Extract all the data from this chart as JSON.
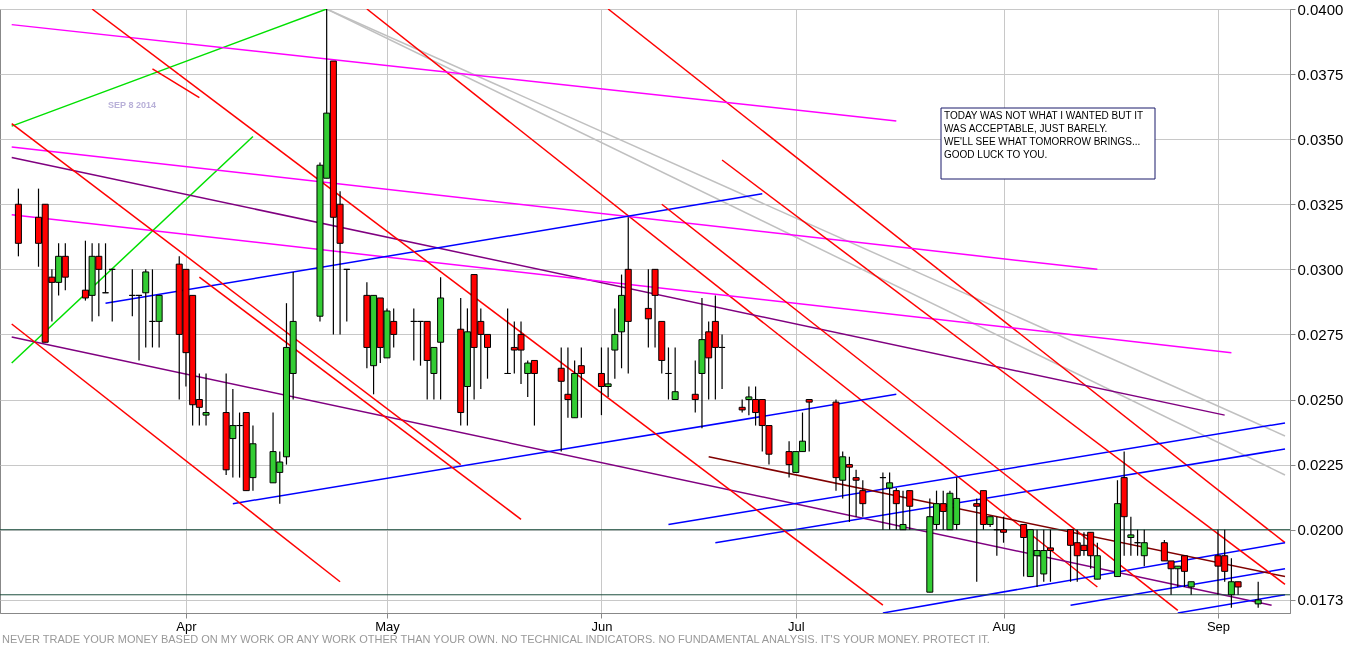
{
  "chart_data": {
    "type": "candlestick",
    "x": [
      "2014-03-07",
      "2014-03-10",
      "2014-03-11",
      "2014-03-12",
      "2014-03-13",
      "2014-03-14",
      "2014-03-17",
      "2014-03-18",
      "2014-03-19",
      "2014-03-20",
      "2014-03-21",
      "2014-03-24",
      "2014-03-25",
      "2014-03-26",
      "2014-03-27",
      "2014-03-28",
      "2014-03-31",
      "2014-04-01",
      "2014-04-02",
      "2014-04-03",
      "2014-04-04",
      "2014-04-07",
      "2014-04-08",
      "2014-04-09",
      "2014-04-10",
      "2014-04-11",
      "2014-04-14",
      "2014-04-15",
      "2014-04-16",
      "2014-04-17",
      "2014-04-21",
      "2014-04-22",
      "2014-04-23",
      "2014-04-24",
      "2014-04-25",
      "2014-04-28",
      "2014-04-29",
      "2014-04-30",
      "2014-05-01",
      "2014-05-02",
      "2014-05-05",
      "2014-05-06",
      "2014-05-07",
      "2014-05-08",
      "2014-05-09",
      "2014-05-12",
      "2014-05-13",
      "2014-05-14",
      "2014-05-15",
      "2014-05-16",
      "2014-05-19",
      "2014-05-20",
      "2014-05-21",
      "2014-05-22",
      "2014-05-23",
      "2014-05-27",
      "2014-05-28",
      "2014-05-29",
      "2014-05-30",
      "2014-06-02",
      "2014-06-03",
      "2014-06-04",
      "2014-06-05",
      "2014-06-06",
      "2014-06-09",
      "2014-06-10",
      "2014-06-11",
      "2014-06-12",
      "2014-06-13",
      "2014-06-16",
      "2014-06-17",
      "2014-06-18",
      "2014-06-19",
      "2014-06-20",
      "2014-06-23",
      "2014-06-24",
      "2014-06-25",
      "2014-06-26",
      "2014-06-27",
      "2014-06-30",
      "2014-07-01",
      "2014-07-02",
      "2014-07-03",
      "2014-07-07",
      "2014-07-08",
      "2014-07-09",
      "2014-07-10",
      "2014-07-11",
      "2014-07-14",
      "2014-07-15",
      "2014-07-16",
      "2014-07-17",
      "2014-07-18",
      "2014-07-21",
      "2014-07-22",
      "2014-07-23",
      "2014-07-24",
      "2014-07-25",
      "2014-07-28",
      "2014-07-29",
      "2014-07-30",
      "2014-07-31",
      "2014-08-01",
      "2014-08-04",
      "2014-08-05",
      "2014-08-06",
      "2014-08-07",
      "2014-08-08",
      "2014-08-11",
      "2014-08-12",
      "2014-08-13",
      "2014-08-14",
      "2014-08-15",
      "2014-08-18",
      "2014-08-19",
      "2014-08-20",
      "2014-08-21",
      "2014-08-22",
      "2014-08-25",
      "2014-08-26",
      "2014-08-27",
      "2014-08-28",
      "2014-08-29",
      "2014-09-02",
      "2014-09-03",
      "2014-09-04",
      "2014-09-05",
      "2014-09-08"
    ],
    "ohlc": [
      [
        0.0325,
        0.0331,
        0.0305,
        0.031
      ],
      [
        0.032,
        0.0331,
        0.0301,
        0.031
      ],
      [
        0.0325,
        0.0325,
        0.0272,
        0.0272
      ],
      [
        0.0297,
        0.03,
        0.028,
        0.0295
      ],
      [
        0.0295,
        0.031,
        0.029,
        0.0305
      ],
      [
        0.0305,
        0.031,
        0.0292,
        0.0297
      ],
      [
        0.0292,
        0.0311,
        0.0288,
        0.0289
      ],
      [
        0.029,
        0.031,
        0.028,
        0.0305
      ],
      [
        0.0305,
        0.031,
        0.0282,
        0.03
      ],
      [
        0.0291,
        0.031,
        0.0291,
        0.0291
      ],
      [
        0.03,
        0.03,
        0.028,
        0.03
      ],
      [
        0.029,
        0.03,
        0.0282,
        0.029
      ],
      [
        0.029,
        0.029,
        0.0265,
        0.029
      ],
      [
        0.0291,
        0.03,
        0.027,
        0.0299
      ],
      [
        0.028,
        0.03,
        0.027,
        0.028
      ],
      [
        0.028,
        0.029,
        0.027,
        0.029
      ],
      [
        0.0302,
        0.0305,
        0.025,
        0.0275
      ],
      [
        0.03,
        0.03,
        0.0255,
        0.0268
      ],
      [
        0.029,
        0.029,
        0.024,
        0.0248
      ],
      [
        0.025,
        0.026,
        0.024,
        0.0247
      ],
      [
        0.0244,
        0.026,
        0.024,
        0.0245
      ],
      [
        0.0245,
        0.026,
        0.0221,
        0.0223
      ],
      [
        0.0235,
        0.0254,
        0.022,
        0.024
      ],
      [
        0.024,
        0.0245,
        0.022,
        0.024
      ],
      [
        0.0245,
        0.0245,
        0.0215,
        0.0215
      ],
      [
        0.022,
        0.024,
        0.0215,
        0.0233
      ],
      [
        0.0218,
        0.0245,
        0.0218,
        0.023
      ],
      [
        0.0222,
        0.023,
        0.021,
        0.0226
      ],
      [
        0.0228,
        0.0287,
        0.0225,
        0.027
      ],
      [
        0.026,
        0.0299,
        0.025,
        0.028
      ],
      [
        0.0282,
        0.0341,
        0.028,
        0.034
      ],
      [
        0.0335,
        0.04,
        0.0335,
        0.036
      ],
      [
        0.038,
        0.038,
        0.0275,
        0.032
      ],
      [
        0.0325,
        0.033,
        0.0275,
        0.031
      ],
      [
        0.03,
        0.03,
        0.028,
        0.03
      ],
      [
        0.029,
        0.0295,
        0.0262,
        0.027
      ],
      [
        0.0263,
        0.029,
        0.0252,
        0.029
      ],
      [
        0.0289,
        0.0289,
        0.0264,
        0.027
      ],
      [
        0.0266,
        0.0285,
        0.0266,
        0.0284
      ],
      [
        0.028,
        0.0285,
        0.027,
        0.0275
      ],
      [
        0.028,
        0.0285,
        0.0265,
        0.028
      ],
      [
        0.028,
        0.028,
        0.0263,
        0.028
      ],
      [
        0.028,
        0.028,
        0.025,
        0.0265
      ],
      [
        0.026,
        0.027,
        0.025,
        0.027
      ],
      [
        0.0272,
        0.0297,
        0.025,
        0.0289
      ],
      [
        0.0277,
        0.0289,
        0.024,
        0.0245
      ],
      [
        0.0255,
        0.0285,
        0.024,
        0.0276
      ],
      [
        0.0298,
        0.0298,
        0.025,
        0.027
      ],
      [
        0.028,
        0.0285,
        0.0254,
        0.0275
      ],
      [
        0.0275,
        0.0275,
        0.0258,
        0.027
      ],
      [
        0.026,
        0.0285,
        0.026,
        0.026
      ],
      [
        0.027,
        0.028,
        0.026,
        0.0269
      ],
      [
        0.0275,
        0.028,
        0.0256,
        0.0269
      ],
      [
        0.026,
        0.0265,
        0.0251,
        0.0264
      ],
      [
        0.0265,
        0.0265,
        0.024,
        0.026
      ],
      [
        0.0262,
        0.027,
        0.023,
        0.0257
      ],
      [
        0.0252,
        0.027,
        0.0243,
        0.025
      ],
      [
        0.0243,
        0.0265,
        0.0243,
        0.026
      ],
      [
        0.0263,
        0.027,
        0.0243,
        0.026
      ],
      [
        0.026,
        0.027,
        0.0244,
        0.0255
      ],
      [
        0.0255,
        0.027,
        0.0251,
        0.0256
      ],
      [
        0.0269,
        0.0285,
        0.0258,
        0.0275
      ],
      [
        0.0276,
        0.0298,
        0.0262,
        0.029
      ],
      [
        0.03,
        0.032,
        0.026,
        0.028
      ],
      [
        0.0285,
        0.03,
        0.027,
        0.0281
      ],
      [
        0.03,
        0.03,
        0.027,
        0.029
      ],
      [
        0.028,
        0.028,
        0.026,
        0.0265
      ],
      [
        0.026,
        0.027,
        0.025,
        0.026
      ],
      [
        0.025,
        0.027,
        0.025,
        0.0253
      ],
      [
        0.0252,
        0.0265,
        0.0245,
        0.025
      ],
      [
        0.026,
        0.0289,
        0.0239,
        0.0273
      ],
      [
        0.0276,
        0.028,
        0.025,
        0.0266
      ],
      [
        0.028,
        0.029,
        0.025,
        0.027
      ],
      [
        0.027,
        0.0275,
        0.0254,
        0.027
      ],
      [
        0.0247,
        0.025,
        0.0245,
        0.0246
      ],
      [
        0.025,
        0.0255,
        0.0244,
        0.0251
      ],
      [
        0.025,
        0.0255,
        0.024,
        0.0245
      ],
      [
        0.025,
        0.025,
        0.023,
        0.024
      ],
      [
        0.024,
        0.024,
        0.0225,
        0.0229
      ],
      [
        0.023,
        0.0234,
        0.022,
        0.0225
      ],
      [
        0.0222,
        0.023,
        0.0222,
        0.023
      ],
      [
        0.023,
        0.0245,
        0.023,
        0.0234
      ],
      [
        0.025,
        0.025,
        0.023,
        0.0249
      ],
      [
        0.0249,
        0.025,
        0.0215,
        0.022
      ],
      [
        0.0219,
        0.023,
        0.0212,
        0.0228
      ],
      [
        0.0225,
        0.0228,
        0.0203,
        0.0224
      ],
      [
        0.022,
        0.0223,
        0.0205,
        0.0219
      ],
      [
        0.0215,
        0.0219,
        0.0205,
        0.021
      ],
      [
        0.022,
        0.0222,
        0.02,
        0.022
      ],
      [
        0.0216,
        0.0222,
        0.02,
        0.0218
      ],
      [
        0.0215,
        0.0216,
        0.02,
        0.021
      ],
      [
        0.02,
        0.0215,
        0.02,
        0.0202
      ],
      [
        0.0215,
        0.0215,
        0.02,
        0.0209
      ],
      [
        0.0176,
        0.0212,
        0.0176,
        0.0205
      ],
      [
        0.0202,
        0.0215,
        0.02,
        0.021
      ],
      [
        0.021,
        0.0215,
        0.02,
        0.0207
      ],
      [
        0.02,
        0.0215,
        0.02,
        0.0214
      ],
      [
        0.0202,
        0.022,
        0.02,
        0.0212
      ],
      [
        0.021,
        0.0212,
        0.018,
        0.0209
      ],
      [
        0.0215,
        0.0215,
        0.02,
        0.0202
      ],
      [
        0.0202,
        0.0205,
        0.0201,
        0.0205
      ],
      [
        0.02,
        0.0205,
        0.019,
        0.02
      ],
      [
        0.02,
        0.0205,
        0.0195,
        0.0199
      ],
      [
        0.0202,
        0.0202,
        0.0182,
        0.0197
      ],
      [
        0.0182,
        0.02,
        0.0182,
        0.02
      ],
      [
        0.019,
        0.02,
        0.0178,
        0.0192
      ],
      [
        0.0183,
        0.02,
        0.018,
        0.0192
      ],
      [
        0.0193,
        0.02,
        0.018,
        0.0192
      ],
      [
        0.02,
        0.02,
        0.018,
        0.0194
      ],
      [
        0.0195,
        0.02,
        0.018,
        0.019
      ],
      [
        0.0194,
        0.0199,
        0.019,
        0.0192
      ],
      [
        0.0199,
        0.0199,
        0.0185,
        0.019
      ],
      [
        0.0181,
        0.0195,
        0.0181,
        0.019
      ],
      [
        0.0182,
        0.0219,
        0.0182,
        0.021
      ],
      [
        0.022,
        0.023,
        0.019,
        0.0205
      ],
      [
        0.0197,
        0.0205,
        0.019,
        0.0198
      ],
      [
        0.0195,
        0.02,
        0.019,
        0.0195
      ],
      [
        0.019,
        0.02,
        0.0186,
        0.0195
      ],
      [
        0.0195,
        0.0196,
        0.0188,
        0.0188
      ],
      [
        0.0188,
        0.0188,
        0.0175,
        0.0185
      ],
      [
        0.0185,
        0.0186,
        0.0178,
        0.0186
      ],
      [
        0.019,
        0.019,
        0.0178,
        0.0184
      ],
      [
        0.0178,
        0.018,
        0.0175,
        0.018
      ],
      [
        0.019,
        0.02,
        0.0175,
        0.0186
      ],
      [
        0.019,
        0.02,
        0.018,
        0.0184
      ],
      [
        0.0175,
        0.0189,
        0.017,
        0.018
      ],
      [
        0.018,
        0.018,
        0.0175,
        0.0178
      ],
      [
        0.01715,
        0.018,
        0.017,
        0.0173
      ]
    ],
    "series": [
      {
        "type": "line",
        "color": "#00e000",
        "x": [
          "2014-03-06",
          "2014-04-22"
        ],
        "values": [
          0.0355,
          0.04
        ]
      },
      {
        "type": "line",
        "color": "#00e000",
        "x": [
          "2014-03-06",
          "2014-04-11"
        ],
        "values": [
          0.0264,
          0.0351
        ]
      },
      {
        "type": "line",
        "color": "#c0c0c0",
        "x": [
          "2014-04-22",
          "2014-09-12"
        ],
        "values": [
          0.04,
          0.0236
        ]
      },
      {
        "type": "line",
        "color": "#c0c0c0",
        "x": [
          "2014-04-22",
          "2014-09-12"
        ],
        "values": [
          0.04,
          0.0221
        ]
      },
      {
        "type": "line",
        "color": "#ff0000",
        "x": [
          "2014-04-28",
          "2014-08-15"
        ],
        "values": [
          0.04,
          0.0178
        ]
      },
      {
        "type": "line",
        "color": "#ff0000",
        "x": [
          "2014-06-03",
          "2014-09-12"
        ],
        "values": [
          0.04,
          0.0195
        ]
      },
      {
        "type": "line",
        "color": "#800080",
        "x": [
          "2014-03-06",
          "2014-09-03"
        ],
        "values": [
          0.0343,
          0.0244
        ]
      },
      {
        "type": "line",
        "color": "#800080",
        "x": [
          "2014-03-06",
          "2014-09-10"
        ],
        "values": [
          0.0274,
          0.0171
        ]
      },
      {
        "type": "line",
        "color": "#ff00ff",
        "x": [
          "2014-03-06",
          "2014-07-16"
        ],
        "values": [
          0.0394,
          0.0357
        ]
      },
      {
        "type": "line",
        "color": "#ff00ff",
        "x": [
          "2014-03-06",
          "2014-08-15"
        ],
        "values": [
          0.0347,
          0.03
        ]
      },
      {
        "type": "line",
        "color": "#ff00ff",
        "x": [
          "2014-03-06",
          "2014-09-04"
        ],
        "values": [
          0.0321,
          0.0268
        ]
      },
      {
        "type": "line",
        "color": "#0000ff",
        "x": [
          "2014-03-20",
          "2014-06-26"
        ],
        "values": [
          0.0287,
          0.0329
        ]
      },
      {
        "type": "line",
        "color": "#0000ff",
        "x": [
          "2014-04-08",
          "2014-07-16"
        ],
        "values": [
          0.021,
          0.0252
        ]
      },
      {
        "type": "line",
        "color": "#0000ff",
        "x": [
          "2014-06-12",
          "2014-09-12"
        ],
        "values": [
          0.0202,
          0.0241
        ]
      },
      {
        "type": "line",
        "color": "#0000ff",
        "x": [
          "2014-06-19",
          "2014-09-12"
        ],
        "values": [
          0.0195,
          0.0231
        ]
      },
      {
        "type": "line",
        "color": "#0000ff",
        "x": [
          "2014-07-14",
          "2014-09-12"
        ],
        "values": [
          0.0168,
          0.0195
        ]
      },
      {
        "type": "line",
        "color": "#0000ff",
        "x": [
          "2014-08-11",
          "2014-09-12"
        ],
        "values": [
          0.0171,
          0.0185
        ]
      },
      {
        "type": "line",
        "color": "#0000ff",
        "x": [
          "2014-08-27",
          "2014-09-12"
        ],
        "values": [
          0.0168,
          0.0175
        ]
      },
      {
        "type": "line",
        "color": "#800000",
        "x": [
          "2014-06-18",
          "2014-09-12"
        ],
        "values": [
          0.0228,
          0.0182
        ]
      },
      {
        "type": "line",
        "color": "#ff0000",
        "x": [
          "2014-03-06",
          "2014-05-12"
        ],
        "values": [
          0.0356,
          0.0225
        ]
      },
      {
        "type": "line",
        "color": "#ff0000",
        "x": [
          "2014-03-18",
          "2014-07-14"
        ],
        "values": [
          0.04,
          0.0171
        ]
      },
      {
        "type": "line",
        "color": "#ff0000",
        "x": [
          "2014-03-06",
          "2014-04-24"
        ],
        "values": [
          0.0279,
          0.018
        ]
      },
      {
        "type": "line",
        "color": "#ff0000",
        "x": [
          "2014-04-03",
          "2014-05-21"
        ],
        "values": [
          0.0297,
          0.0204
        ]
      },
      {
        "type": "line",
        "color": "#ff0000",
        "x": [
          "2014-06-11",
          "2014-08-27"
        ],
        "values": [
          0.0325,
          0.0169
        ]
      },
      {
        "type": "line",
        "color": "#ff0000",
        "x": [
          "2014-06-20",
          "2014-09-12"
        ],
        "values": [
          0.0342,
          0.0179
        ]
      },
      {
        "type": "line",
        "color": "#ff0000",
        "x": [
          "2014-03-27",
          "2014-04-03"
        ],
        "values": [
          0.0377,
          0.0366
        ]
      }
    ],
    "xlim": [
      "2014-03-05",
      "2014-09-12"
    ],
    "xticks": [
      {
        "value": "2014-04-01",
        "label": "Apr"
      },
      {
        "value": "2014-05-01",
        "label": "May"
      },
      {
        "value": "2014-06-02",
        "label": "Jun"
      },
      {
        "value": "2014-07-01",
        "label": "Jul"
      },
      {
        "value": "2014-08-01",
        "label": "Aug"
      },
      {
        "value": "2014-09-02",
        "label": "Sep"
      }
    ],
    "ylim": [
      0.0168,
      0.04
    ],
    "yticks": [
      {
        "value": 0.0173,
        "label": "0.0173"
      },
      {
        "value": 0.02,
        "label": "0.0200"
      },
      {
        "value": 0.0225,
        "label": "0.0225"
      },
      {
        "value": 0.025,
        "label": "0.0250"
      },
      {
        "value": 0.0275,
        "label": "0.0275"
      },
      {
        "value": 0.03,
        "label": "0.0300"
      },
      {
        "value": 0.0325,
        "label": "0.0325"
      },
      {
        "value": 0.035,
        "label": "0.0350"
      },
      {
        "value": 0.0375,
        "label": "0.0375"
      },
      {
        "value": 0.04,
        "label": "0.0400"
      }
    ],
    "ref_lines": [
      {
        "axis": "y",
        "value": 0.02,
        "color": "#1f4f3f"
      },
      {
        "axis": "y",
        "value": 0.0175,
        "color": "#1f4f3f"
      }
    ],
    "grid": true,
    "annotations": [
      "SEP 8 2014",
      "TODAY WAS NOT WHAT I WANTED BUT IT\nWAS ACCEPTABLE, JUST BARELY.\nWE'LL SEE WHAT TOMORROW BRINGS...\n\nGOOD LUCK TO YOU.",
      "NEVER TRADE YOUR MONEY BASED ON MY WORK OR ANY WORK OTHER THAN YOUR OWN. NO TECHNICAL INDICATORS. NO FUNDAMENTAL ANALYSIS. IT'S YOUR MONEY. PROTECT IT."
    ]
  }
}
